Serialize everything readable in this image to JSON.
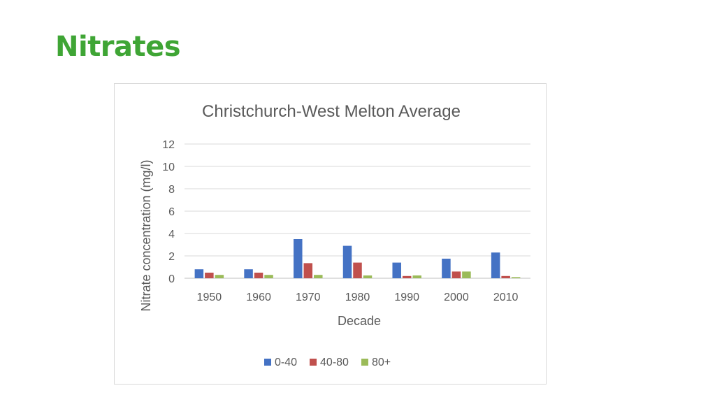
{
  "slide": {
    "title": "Nitrates",
    "title_color": "#3fa535"
  },
  "chart_data": {
    "type": "bar",
    "title": "Christchurch-West Melton Average",
    "xlabel": "Decade",
    "ylabel": "Nitrate concentration (mg/l)",
    "ylim": [
      0,
      12
    ],
    "yticks": [
      "0",
      "2",
      "4",
      "6",
      "8",
      "10",
      "12"
    ],
    "categories": [
      "1950",
      "1960",
      "1970",
      "1980",
      "1990",
      "2000",
      "2010"
    ],
    "grid": true,
    "legend": "bottom",
    "series": [
      {
        "name": "0-40",
        "color": "#4472c4",
        "values": [
          0.8,
          0.8,
          3.5,
          2.9,
          1.4,
          1.75,
          2.3
        ]
      },
      {
        "name": "40-80",
        "color": "#c0504d",
        "values": [
          0.5,
          0.5,
          1.35,
          1.4,
          0.2,
          0.6,
          0.2
        ]
      },
      {
        "name": "80+",
        "color": "#9bbb59",
        "values": [
          0.3,
          0.3,
          0.3,
          0.25,
          0.25,
          0.6,
          0.1
        ]
      }
    ]
  }
}
